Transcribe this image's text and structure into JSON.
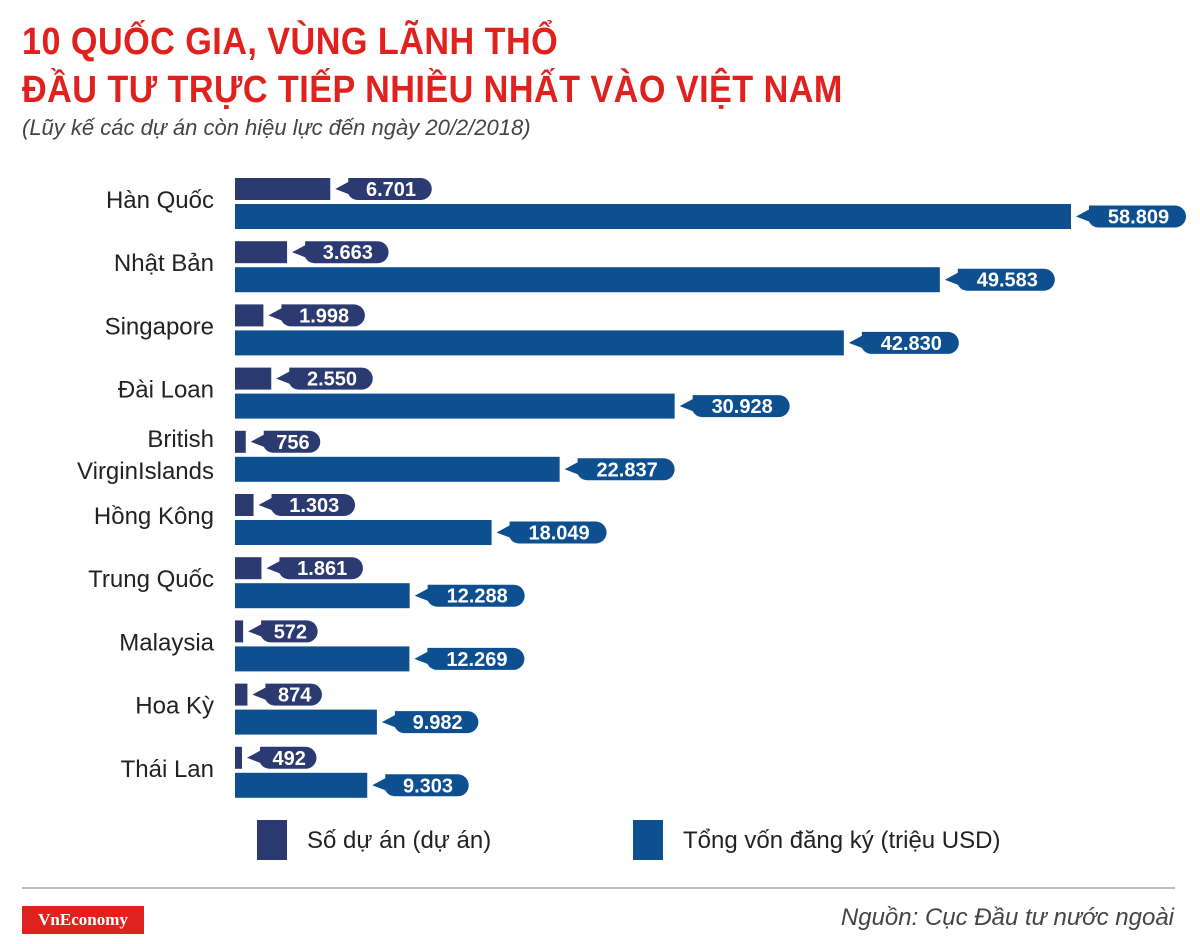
{
  "header": {
    "title_line1": "10 QUỐC GIA, VÙNG LÃNH THỔ",
    "title_line2": "ĐẦU TƯ TRỰC TIẾP NHIỀU NHẤT VÀO VIỆT NAM",
    "subtitle": "(Lũy kế các dự án còn hiệu lực đến ngày 20/2/2018)"
  },
  "chart_data": {
    "type": "bar",
    "orientation": "horizontal",
    "categories": [
      "Hàn Quốc",
      "Nhật Bản",
      "Singapore",
      "Đài Loan",
      "British VirginIslands",
      "Hồng Kông",
      "Trung Quốc",
      "Malaysia",
      "Hoa Kỳ",
      "Thái Lan"
    ],
    "category_label_lines": [
      [
        "Hàn Quốc"
      ],
      [
        "Nhật Bản"
      ],
      [
        "Singapore"
      ],
      [
        "Đài Loan"
      ],
      [
        "British",
        "VirginIslands"
      ],
      [
        "Hồng Kông"
      ],
      [
        "Trung Quốc"
      ],
      [
        "Malaysia"
      ],
      [
        "Hoa Kỳ"
      ],
      [
        "Thái Lan"
      ]
    ],
    "series": [
      {
        "name": "Số dự án (dự án)",
        "color": "#2b3a70",
        "values": [
          6701,
          3663,
          1998,
          2550,
          756,
          1303,
          1861,
          572,
          874,
          492
        ],
        "labels": [
          "6.701",
          "3.663",
          "1.998",
          "2.550",
          "756",
          "1.303",
          "1.861",
          "572",
          "874",
          "492"
        ]
      },
      {
        "name": "Tổng vốn đăng ký (triệu USD)",
        "color": "#0d4f8f",
        "values": [
          58809,
          49583,
          42830,
          30928,
          22837,
          18049,
          12288,
          12269,
          9982,
          9303
        ],
        "labels": [
          "58.809",
          "49.583",
          "42.830",
          "30.928",
          "22.837",
          "18.049",
          "12.288",
          "12.269",
          "9.982",
          "9.303"
        ]
      }
    ],
    "grid": false,
    "legend": "bottom"
  },
  "footer": {
    "logo": "VnEconomy",
    "source": "Nguồn: Cục Đầu tư nước ngoài"
  }
}
